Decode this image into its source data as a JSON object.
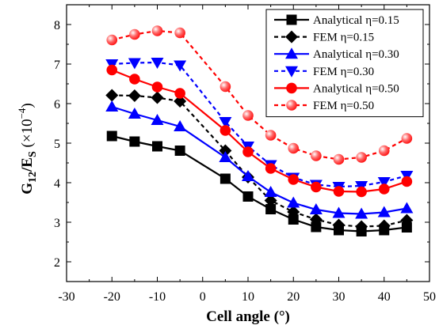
{
  "chart_data": {
    "type": "line",
    "title": "",
    "xlabel": "Cell angle (°)",
    "ylabel": {
      "prefix": "G",
      "sub1": "12",
      "slash": "/E",
      "sub2": "S",
      "paren_open": " (×10",
      "exp": "−4",
      "paren_close": ")"
    },
    "xlim": [
      -30,
      50
    ],
    "ylim": [
      1.5,
      8.5
    ],
    "xticks": [
      -30,
      -20,
      -10,
      0,
      10,
      20,
      30,
      40,
      50
    ],
    "yticks": [
      2,
      3,
      4,
      5,
      6,
      7,
      8
    ],
    "grid": false,
    "legend_position": "top-right",
    "x": [
      -20,
      -15,
      -10,
      -5,
      5,
      10,
      15,
      20,
      25,
      30,
      35,
      40,
      45
    ],
    "series": [
      {
        "name": "Analytical η=0.15",
        "color": "#000000",
        "marker": "square",
        "line": "solid",
        "values": [
          5.18,
          5.04,
          4.92,
          4.81,
          4.1,
          3.65,
          3.33,
          3.07,
          2.88,
          2.8,
          2.77,
          2.8,
          2.87
        ]
      },
      {
        "name": "FEM η=0.15",
        "color": "#000000",
        "marker": "diamond",
        "line": "dashed",
        "values": [
          6.21,
          6.2,
          6.15,
          6.06,
          4.81,
          4.14,
          3.55,
          3.26,
          3.07,
          2.93,
          2.89,
          2.91,
          3.05
        ]
      },
      {
        "name": "Analytical η=0.30",
        "color": "#0000ff",
        "marker": "triangle-up",
        "line": "solid",
        "values": [
          5.92,
          5.74,
          5.58,
          5.42,
          4.64,
          4.16,
          3.76,
          3.49,
          3.32,
          3.23,
          3.21,
          3.25,
          3.35
        ]
      },
      {
        "name": "FEM η=0.30",
        "color": "#0000ff",
        "marker": "triangle-down",
        "line": "dashed",
        "values": [
          7.0,
          7.03,
          7.04,
          6.97,
          5.54,
          4.92,
          4.45,
          4.13,
          3.95,
          3.9,
          3.92,
          4.02,
          4.18
        ]
      },
      {
        "name": "Analytical η=0.50",
        "color": "#ff0000",
        "marker": "circle",
        "line": "solid",
        "values": [
          6.85,
          6.62,
          6.42,
          6.26,
          5.32,
          4.78,
          4.36,
          4.08,
          3.89,
          3.78,
          3.77,
          3.84,
          4.03
        ]
      },
      {
        "name": "FEM η=0.50",
        "color": "#ff0000",
        "marker": "circle-open",
        "line": "dashed",
        "values": [
          7.61,
          7.75,
          7.84,
          7.79,
          6.43,
          5.7,
          5.2,
          4.87,
          4.68,
          4.59,
          4.64,
          4.81,
          5.12
        ]
      }
    ]
  }
}
